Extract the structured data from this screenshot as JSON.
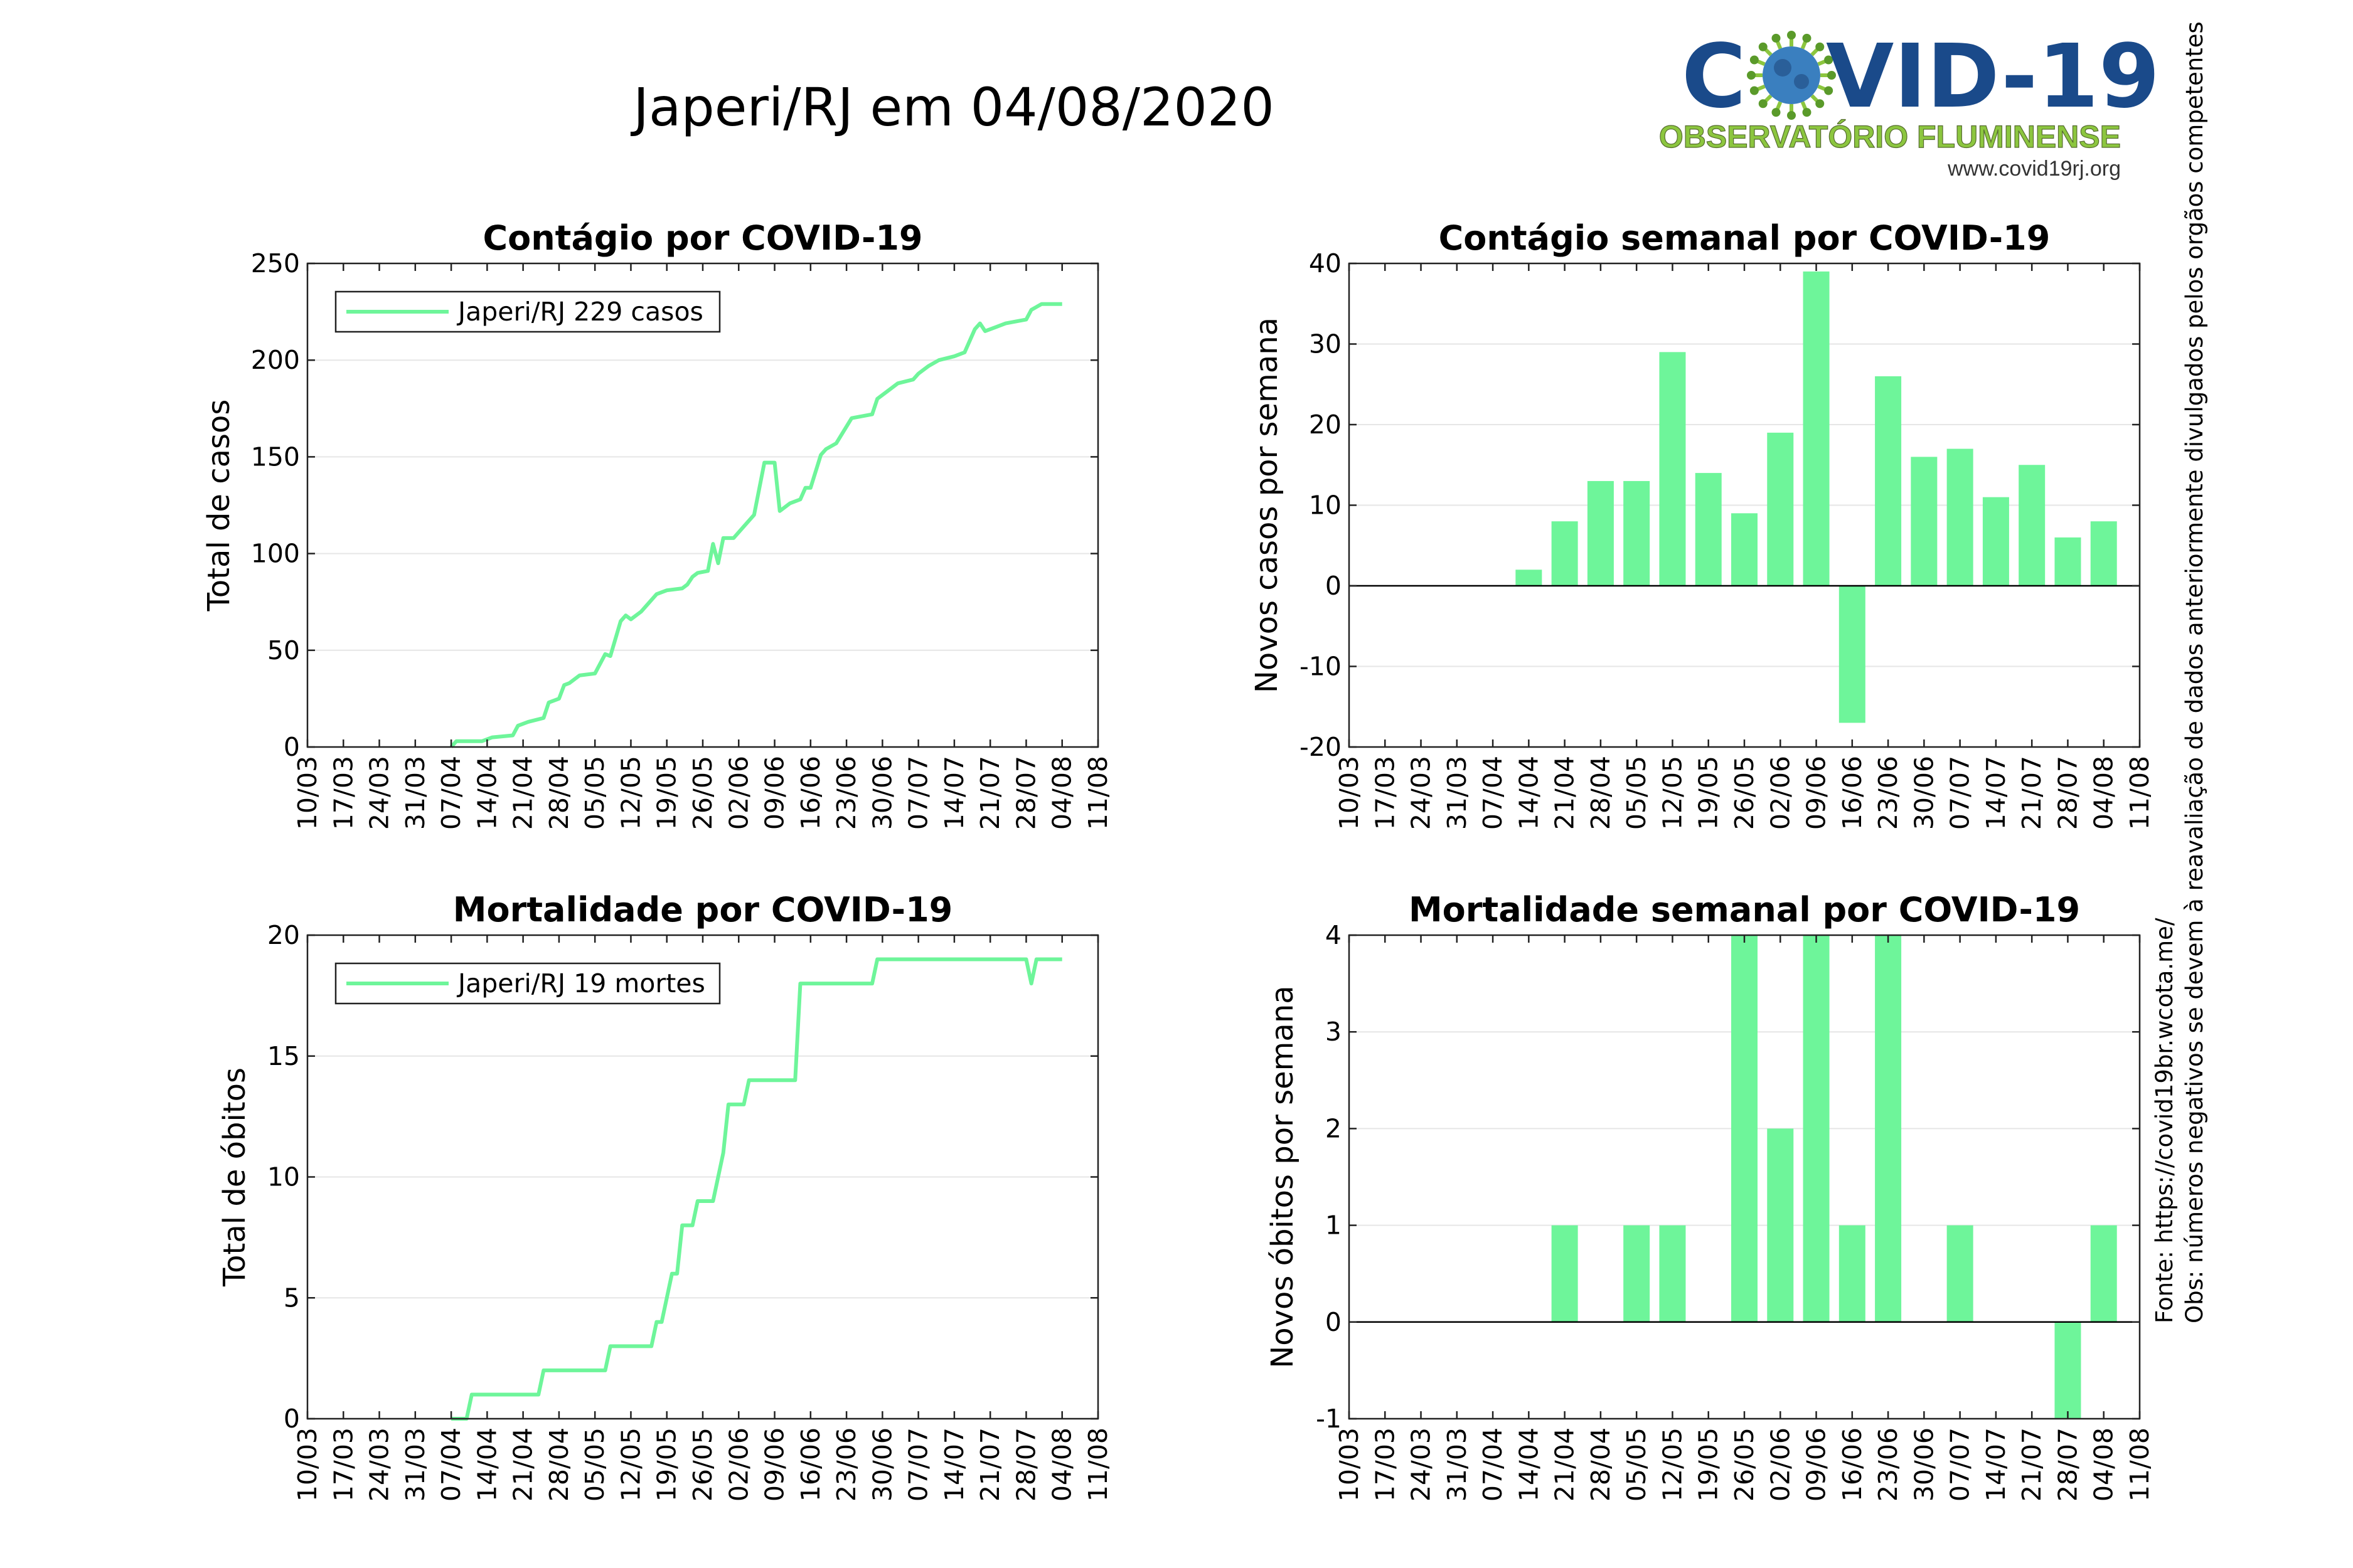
{
  "page": {
    "title": "Japeri/RJ em 04/08/2020",
    "source_note": "Fonte: https://covid19br.wcota.me/",
    "obs_note": "Obs: números negativos se devem à reavaliação de dados anteriormente divulgados pelos orgãos competentes"
  },
  "logo": {
    "text_left": "C",
    "text_right": "VID-19",
    "subtitle": "OBSERVATÓRIO FLUMINENSE",
    "url": "www.covid19rj.org"
  },
  "colors": {
    "series": "#6ef59a",
    "grid": "#e6e6e6",
    "logo_blue": "#1a4a8a",
    "logo_green": "#8cc63f"
  },
  "chart_data": [
    {
      "type": "line",
      "title": "Contágio por COVID-19",
      "xlabel": "",
      "ylabel": "Total de casos",
      "ylim": [
        0,
        250
      ],
      "yticks": [
        0,
        50,
        100,
        150,
        200,
        250
      ],
      "xlim": [
        "10/03",
        "11/08"
      ],
      "xticks": [
        "10/03",
        "17/03",
        "24/03",
        "31/03",
        "07/04",
        "14/04",
        "21/04",
        "28/04",
        "05/05",
        "12/05",
        "19/05",
        "26/05",
        "02/06",
        "09/06",
        "16/06",
        "23/06",
        "30/06",
        "07/07",
        "14/07",
        "21/07",
        "28/07",
        "04/08",
        "11/08"
      ],
      "legend": "Japeri/RJ  229 casos",
      "legend_position": "top-left",
      "grid": true,
      "series": [
        {
          "name": "Japeri/RJ",
          "points": [
            [
              "07/04",
              0
            ],
            [
              "08/04",
              3
            ],
            [
              "13/04",
              3
            ],
            [
              "15/04",
              5
            ],
            [
              "19/04",
              6
            ],
            [
              "20/04",
              11
            ],
            [
              "22/04",
              13
            ],
            [
              "25/04",
              15
            ],
            [
              "26/04",
              23
            ],
            [
              "28/04",
              25
            ],
            [
              "29/04",
              32
            ],
            [
              "30/04",
              33
            ],
            [
              "02/05",
              37
            ],
            [
              "05/05",
              38
            ],
            [
              "07/05",
              48
            ],
            [
              "08/05",
              47
            ],
            [
              "10/05",
              65
            ],
            [
              "11/05",
              68
            ],
            [
              "12/05",
              66
            ],
            [
              "14/05",
              70
            ],
            [
              "17/05",
              79
            ],
            [
              "19/05",
              81
            ],
            [
              "22/05",
              82
            ],
            [
              "23/05",
              84
            ],
            [
              "24/05",
              88
            ],
            [
              "25/05",
              90
            ],
            [
              "27/05",
              91
            ],
            [
              "28/05",
              105
            ],
            [
              "29/05",
              95
            ],
            [
              "30/05",
              108
            ],
            [
              "01/06",
              108
            ],
            [
              "03/06",
              114
            ],
            [
              "05/06",
              120
            ],
            [
              "07/06",
              147
            ],
            [
              "09/06",
              147
            ],
            [
              "10/06",
              122
            ],
            [
              "11/06",
              124
            ],
            [
              "12/06",
              126
            ],
            [
              "14/06",
              128
            ],
            [
              "15/06",
              134
            ],
            [
              "16/06",
              134
            ],
            [
              "18/06",
              151
            ],
            [
              "19/06",
              154
            ],
            [
              "21/06",
              157
            ],
            [
              "24/06",
              170
            ],
            [
              "28/06",
              172
            ],
            [
              "29/06",
              180
            ],
            [
              "01/07",
              184
            ],
            [
              "03/07",
              188
            ],
            [
              "06/07",
              190
            ],
            [
              "07/07",
              193
            ],
            [
              "09/07",
              197
            ],
            [
              "11/07",
              200
            ],
            [
              "14/07",
              202
            ],
            [
              "16/07",
              204
            ],
            [
              "18/07",
              216
            ],
            [
              "19/07",
              219
            ],
            [
              "20/07",
              215
            ],
            [
              "22/07",
              217
            ],
            [
              "24/07",
              219
            ],
            [
              "28/07",
              221
            ],
            [
              "29/07",
              226
            ],
            [
              "31/07",
              229
            ],
            [
              "04/08",
              229
            ]
          ]
        }
      ]
    },
    {
      "type": "bar",
      "title": "Contágio semanal por COVID-19",
      "xlabel": "",
      "ylabel": "Novos casos por semana",
      "ylim": [
        -20,
        40
      ],
      "yticks": [
        -20,
        -10,
        0,
        10,
        20,
        30,
        40
      ],
      "xlim": [
        "10/03",
        "11/08"
      ],
      "xticks": [
        "10/03",
        "17/03",
        "24/03",
        "31/03",
        "07/04",
        "14/04",
        "21/04",
        "28/04",
        "05/05",
        "12/05",
        "19/05",
        "26/05",
        "02/06",
        "09/06",
        "16/06",
        "23/06",
        "30/06",
        "07/07",
        "14/07",
        "21/07",
        "28/07",
        "04/08",
        "11/08"
      ],
      "grid": true,
      "categories": [
        "14/04",
        "21/04",
        "28/04",
        "05/05",
        "12/05",
        "19/05",
        "26/05",
        "02/06",
        "09/06",
        "16/06",
        "23/06",
        "30/06",
        "07/07",
        "14/07",
        "21/07",
        "28/07",
        "04/08"
      ],
      "values": [
        2,
        8,
        13,
        13,
        29,
        14,
        9,
        19,
        39,
        -17,
        26,
        16,
        17,
        11,
        15,
        6,
        8
      ]
    },
    {
      "type": "line",
      "title": "Mortalidade por COVID-19",
      "xlabel": "",
      "ylabel": "Total de óbitos",
      "ylim": [
        0,
        20
      ],
      "yticks": [
        0,
        5,
        10,
        15,
        20
      ],
      "xlim": [
        "10/03",
        "11/08"
      ],
      "xticks": [
        "10/03",
        "17/03",
        "24/03",
        "31/03",
        "07/04",
        "14/04",
        "21/04",
        "28/04",
        "05/05",
        "12/05",
        "19/05",
        "26/05",
        "02/06",
        "09/06",
        "16/06",
        "23/06",
        "30/06",
        "07/07",
        "14/07",
        "21/07",
        "28/07",
        "04/08",
        "11/08"
      ],
      "legend": "Japeri/RJ  19 mortes",
      "legend_position": "top-left",
      "grid": true,
      "series": [
        {
          "name": "Japeri/RJ",
          "points": [
            [
              "07/04",
              0
            ],
            [
              "10/04",
              0
            ],
            [
              "11/04",
              1
            ],
            [
              "17/04",
              1
            ],
            [
              "24/04",
              1
            ],
            [
              "25/04",
              2
            ],
            [
              "30/04",
              2
            ],
            [
              "07/05",
              2
            ],
            [
              "08/05",
              3
            ],
            [
              "16/05",
              3
            ],
            [
              "17/05",
              4
            ],
            [
              "18/05",
              4
            ],
            [
              "20/05",
              6
            ],
            [
              "21/05",
              6
            ],
            [
              "22/05",
              8
            ],
            [
              "24/05",
              8
            ],
            [
              "25/05",
              9
            ],
            [
              "28/05",
              9
            ],
            [
              "29/05",
              10
            ],
            [
              "30/05",
              11
            ],
            [
              "31/05",
              13
            ],
            [
              "03/06",
              13
            ],
            [
              "04/06",
              14
            ],
            [
              "13/06",
              14
            ],
            [
              "14/06",
              18
            ],
            [
              "21/06",
              18
            ],
            [
              "28/06",
              18
            ],
            [
              "29/06",
              19
            ],
            [
              "21/07",
              19
            ],
            [
              "28/07",
              19
            ],
            [
              "29/07",
              18
            ],
            [
              "30/07",
              19
            ],
            [
              "04/08",
              19
            ]
          ]
        }
      ]
    },
    {
      "type": "bar",
      "title": "Mortalidade semanal por COVID-19",
      "xlabel": "",
      "ylabel": "Novos óbitos por semana",
      "ylim": [
        -1,
        4
      ],
      "yticks": [
        -1,
        0,
        1,
        2,
        3,
        4
      ],
      "xlim": [
        "10/03",
        "11/08"
      ],
      "xticks": [
        "10/03",
        "17/03",
        "24/03",
        "31/03",
        "07/04",
        "14/04",
        "21/04",
        "28/04",
        "05/05",
        "12/05",
        "19/05",
        "26/05",
        "02/06",
        "09/06",
        "16/06",
        "23/06",
        "30/06",
        "07/07",
        "14/07",
        "21/07",
        "28/07",
        "04/08",
        "11/08"
      ],
      "grid": true,
      "categories": [
        "21/04",
        "05/05",
        "12/05",
        "26/05",
        "02/06",
        "09/06",
        "16/06",
        "23/06",
        "07/07",
        "28/07",
        "04/08"
      ],
      "values": [
        1,
        1,
        1,
        4,
        2,
        4,
        1,
        4,
        1,
        -1,
        1
      ]
    }
  ]
}
